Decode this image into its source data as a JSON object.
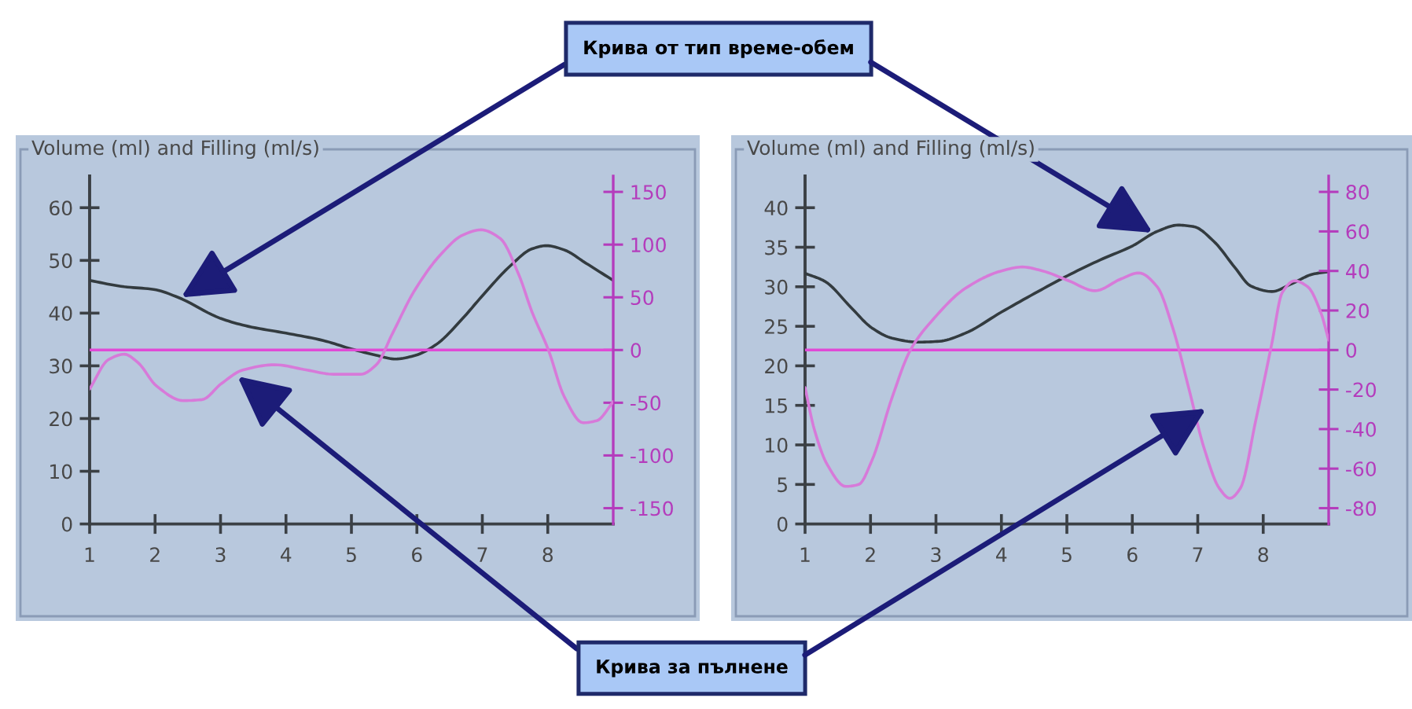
{
  "chart_data": [
    {
      "type": "line",
      "title": "Volume (ml) and Filling (ml/s)",
      "series": [
        {
          "color": "#333b3f",
          "x": [
            1,
            1.53,
            1.98,
            2.35,
            3,
            3.42,
            4,
            4.57,
            5,
            5.38,
            5.67,
            5.98,
            6.29,
            6.7,
            6.98,
            7.43,
            7.76,
            7.98,
            8.25,
            8.58,
            9
          ],
          "values": [
            46.2,
            45,
            44.5,
            43,
            39,
            37.5,
            36.2,
            34.8,
            33.2,
            32,
            31.3,
            32,
            34,
            39,
            43,
            49,
            52.2,
            52.8,
            52,
            49.5,
            46.2
          ]
        },
        {
          "color": "#d77ad9",
          "axis": "y2",
          "x": [
            1,
            1.29,
            1.53,
            1.74,
            2.02,
            2.43,
            2.72,
            3.01,
            3.34,
            3.83,
            4.32,
            4.73,
            5.14,
            5.38,
            5.63,
            5.96,
            6.37,
            6.7,
            6.98,
            7.27,
            7.56,
            7.76,
            8.01,
            8.25,
            8.54,
            8.75,
            9
          ],
          "values": [
            -37,
            -9,
            -4,
            -12,
            -34,
            -48,
            -47,
            -32,
            -19,
            -14,
            -19,
            -23,
            -23,
            -14,
            16,
            56,
            91,
            109,
            114,
            106,
            71,
            36,
            0,
            -44,
            -69,
            -67,
            -49
          ]
        }
      ],
      "xlim": [
        1,
        9
      ],
      "xticks": [
        1,
        2,
        3,
        4,
        5,
        6,
        7,
        8
      ],
      "ylim": [
        0,
        66
      ],
      "yticks": [
        0,
        10,
        20,
        30,
        40,
        50,
        60
      ],
      "y2lim": [
        -165,
        165
      ],
      "y2ticks": [
        -150,
        -100,
        -50,
        0,
        50,
        100,
        150
      ],
      "ref_lines": [
        {
          "axis": "y2",
          "value": 0,
          "color": "#e04ad6"
        }
      ],
      "annotations": [
        {
          "text": "Крива от тип време-обем",
          "x": 2.4,
          "y": 43
        },
        {
          "text": "Крива за пълнене",
          "x": 3.26,
          "y": 28
        }
      ]
    },
    {
      "type": "line",
      "title": "Volume (ml) and Filling (ml/s)",
      "series": [
        {
          "color": "#333b3f",
          "x": [
            1,
            1.3,
            1.7,
            2.02,
            2.33,
            2.73,
            3.05,
            3.44,
            4,
            4.56,
            5.01,
            5.51,
            6.01,
            6.38,
            6.7,
            6.94,
            7.25,
            7.57,
            7.81,
            8.13,
            8.44,
            8.76,
            9
          ],
          "values": [
            31.7,
            30.7,
            27.4,
            24.8,
            23.5,
            23,
            23.1,
            24.1,
            26.8,
            29.4,
            31.4,
            33.4,
            35.2,
            37,
            37.8,
            37.6,
            35.7,
            32.4,
            30.1,
            29.4,
            30.4,
            31.6,
            31.9
          ]
        },
        {
          "color": "#d77ad9",
          "axis": "y2",
          "x": [
            1,
            1.14,
            1.34,
            1.62,
            1.82,
            2.02,
            2.33,
            2.61,
            2.97,
            3.44,
            4,
            4.32,
            4.63,
            5.03,
            5.43,
            5.83,
            6.1,
            6.38,
            6.62,
            6.86,
            7.1,
            7.33,
            7.49,
            7.65,
            7.89,
            8.13,
            8.29,
            8.48,
            8.68,
            8.88,
            9
          ],
          "values": [
            -19,
            -40,
            -58,
            -69,
            -68,
            -56,
            -24,
            0,
            16,
            31,
            40,
            42,
            40,
            35,
            30,
            36,
            39,
            32,
            11,
            -19,
            -50,
            -70,
            -75,
            -70,
            -35,
            3,
            29,
            35,
            32,
            19,
            5
          ]
        }
      ],
      "xlim": [
        1,
        9
      ],
      "xticks": [
        1,
        2,
        3,
        4,
        5,
        6,
        7,
        8
      ],
      "ylim": [
        0,
        44
      ],
      "yticks": [
        0,
        5,
        10,
        15,
        20,
        25,
        30,
        35,
        40
      ],
      "y2lim": [
        -88,
        88
      ],
      "y2ticks": [
        -80,
        -60,
        -40,
        -20,
        0,
        20,
        40,
        60,
        80
      ],
      "ref_lines": [
        {
          "axis": "y2",
          "value": 0,
          "color": "#e04ad6"
        }
      ]
    }
  ]
}
